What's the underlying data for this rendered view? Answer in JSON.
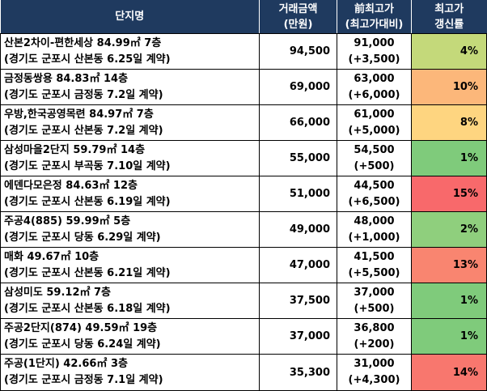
{
  "headers": {
    "name": "단지명",
    "price_line1": "거래금액",
    "price_line2": "(만원)",
    "prev_line1": "前최고가",
    "prev_line2": "(최고가대비)",
    "rate_line1": "최고가",
    "rate_line2": "갱신률"
  },
  "rows": [
    {
      "line1": "산본2차이-편한세상 84.99㎡ 7층",
      "line2": "(경기도 군포시 산본동 6.25일 계약)",
      "price": "94,500",
      "prev": "91,000",
      "diff": "(+3,500)",
      "rate": "4%",
      "color": "#c4d97a"
    },
    {
      "line1": "금정동쌍용 84.83㎡ 14층",
      "line2": "(경기도 군포시 금정동 7.2일 계약)",
      "price": "69,000",
      "prev": "63,000",
      "diff": "(+6,000)",
      "rate": "10%",
      "color": "#fcb77a"
    },
    {
      "line1": "우방,한국공영목련 84.97㎡ 7층",
      "line2": "(경기도 군포시 산본동 7.2일 계약)",
      "price": "66,000",
      "prev": "61,000",
      "diff": "(+5,000)",
      "rate": "8%",
      "color": "#fed580"
    },
    {
      "line1": "삼성마을2단지 59.79㎡ 14층",
      "line2": "(경기도 군포시 부곡동 7.10일 계약)",
      "price": "55,000",
      "prev": "54,500",
      "diff": "(+500)",
      "rate": "1%",
      "color": "#7fcb7b"
    },
    {
      "line1": "에덴다모은정 84.63㎡ 12층",
      "line2": "(경기도 군포시 산본동 6.19일 계약)",
      "price": "51,000",
      "prev": "44,500",
      "diff": "(+6,500)",
      "rate": "15%",
      "color": "#f8696b"
    },
    {
      "line1": "주공4(885) 59.99㎡ 5층",
      "line2": "(경기도 군포시 당동 6.29일 계약)",
      "price": "49,000",
      "prev": "48,000",
      "diff": "(+1,000)",
      "rate": "2%",
      "color": "#8fcf7d"
    },
    {
      "line1": "매화 49.67㎡ 10층",
      "line2": "(경기도 군포시 산본동 6.21일 계약)",
      "price": "47,000",
      "prev": "41,500",
      "diff": "(+5,500)",
      "rate": "13%",
      "color": "#f98570"
    },
    {
      "line1": "삼성미도 59.12㎡ 7층",
      "line2": "(경기도 군포시 산본동 6.18일 계약)",
      "price": "37,500",
      "prev": "37,000",
      "diff": "(+500)",
      "rate": "1%",
      "color": "#7fcb7b"
    },
    {
      "line1": "주공2단지(874) 49.59㎡ 19층",
      "line2": "(경기도 군포시 당동 6.24일 계약)",
      "price": "37,000",
      "prev": "36,800",
      "diff": "(+200)",
      "rate": "1%",
      "color": "#7fcb7b"
    },
    {
      "line1": "주공(1단지) 42.66㎡ 3층",
      "line2": "(경기도 군포시 금정동 7.1일 계약)",
      "price": "35,300",
      "prev": "31,000",
      "diff": "(+4,300)",
      "rate": "14%",
      "color": "#f8776e"
    }
  ]
}
